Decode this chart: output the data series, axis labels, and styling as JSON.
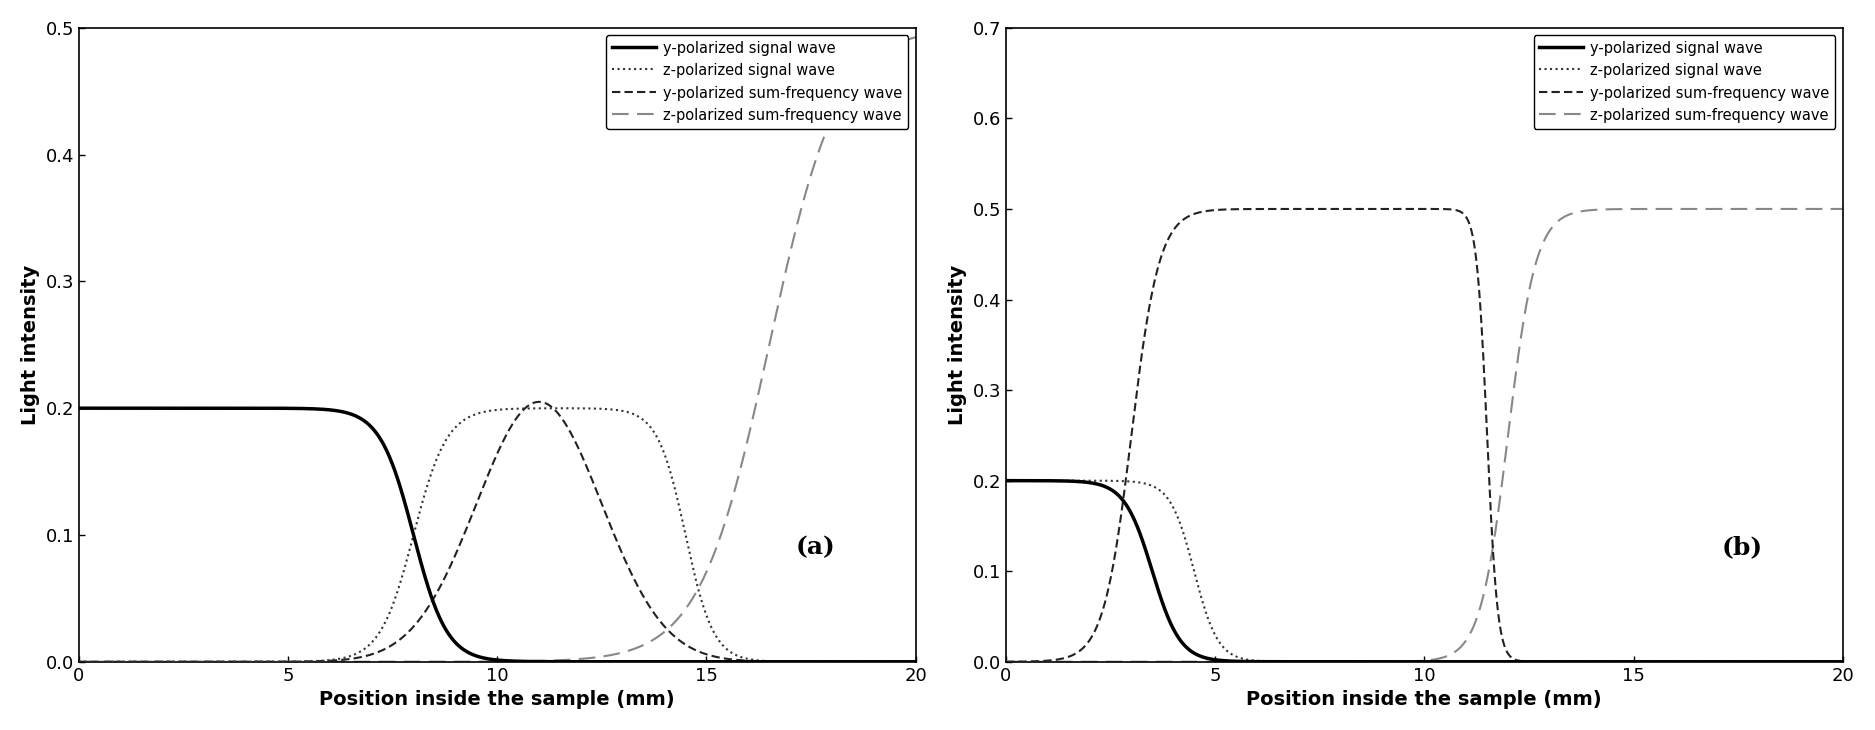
{
  "title_a": "(a)",
  "title_b": "(b)",
  "xlabel": "Position inside the sample (mm)",
  "ylabel": "Light intensity",
  "xlim": [
    0,
    20
  ],
  "ylim_a": [
    0,
    0.5
  ],
  "ylim_b": [
    0,
    0.7
  ],
  "yticks_a": [
    0,
    0.1,
    0.2,
    0.3,
    0.4,
    0.5
  ],
  "yticks_b": [
    0,
    0.1,
    0.2,
    0.3,
    0.4,
    0.5,
    0.6,
    0.7
  ],
  "legend_labels": [
    "y-polarized signal wave",
    "z-polarized signal wave",
    "y-polarized sum-frequency wave",
    "z-polarized sum-frequency wave"
  ],
  "background_color": "#ffffff"
}
